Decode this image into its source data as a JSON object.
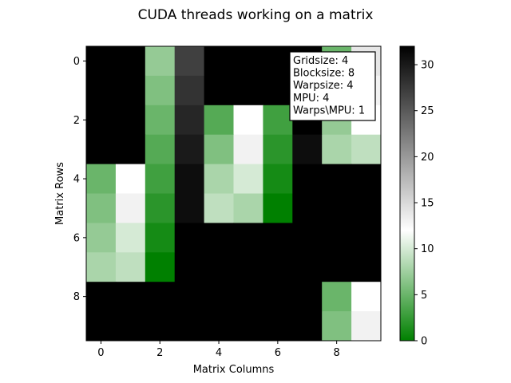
{
  "chart_data": {
    "type": "heatmap",
    "title": "CUDA threads working on a matrix",
    "xlabel": "Matrix Columns",
    "ylabel": "Matrix Rows",
    "x_ticks": [
      "0",
      "2",
      "4",
      "6",
      "8"
    ],
    "x_tick_values": [
      0,
      2,
      4,
      6,
      8
    ],
    "y_ticks": [
      "0",
      "2",
      "4",
      "6",
      "8"
    ],
    "y_tick_values": [
      0,
      2,
      4,
      6,
      8
    ],
    "rows": 10,
    "cols": 10,
    "values": [
      [
        32,
        32,
        7,
        27,
        32,
        32,
        32,
        32,
        5,
        14
      ],
      [
        32,
        32,
        6,
        28,
        32,
        32,
        32,
        32,
        6,
        13
      ],
      [
        32,
        32,
        5,
        29,
        4,
        12,
        3,
        32,
        7,
        12
      ],
      [
        32,
        32,
        4,
        30,
        6,
        13,
        2,
        31,
        8,
        9
      ],
      [
        5,
        12,
        3,
        31,
        8,
        10,
        1,
        32,
        32,
        32
      ],
      [
        6,
        13,
        2,
        31,
        9,
        8,
        0,
        32,
        32,
        32
      ],
      [
        7,
        10,
        1,
        32,
        32,
        32,
        32,
        32,
        32,
        32
      ],
      [
        8,
        9,
        0,
        32,
        32,
        32,
        32,
        32,
        32,
        32
      ],
      [
        32,
        32,
        32,
        32,
        32,
        32,
        32,
        32,
        5,
        12
      ],
      [
        32,
        32,
        32,
        32,
        32,
        32,
        32,
        32,
        6,
        13
      ]
    ],
    "colorbar": {
      "min": 0,
      "max": 32,
      "ticks": [
        0,
        5,
        10,
        15,
        20,
        25,
        30
      ],
      "stops": [
        {
          "v": 0,
          "color": "#008000"
        },
        {
          "v": 12,
          "color": "#ffffff"
        },
        {
          "v": 32,
          "color": "#000000"
        }
      ]
    },
    "annotation": {
      "lines": [
        "Gridsize: 4",
        "Blocksize: 8",
        "Warpsize: 4",
        "MPU: 4",
        "Warps\\MPU: 1"
      ],
      "placement": "top-right"
    },
    "grid": false
  }
}
